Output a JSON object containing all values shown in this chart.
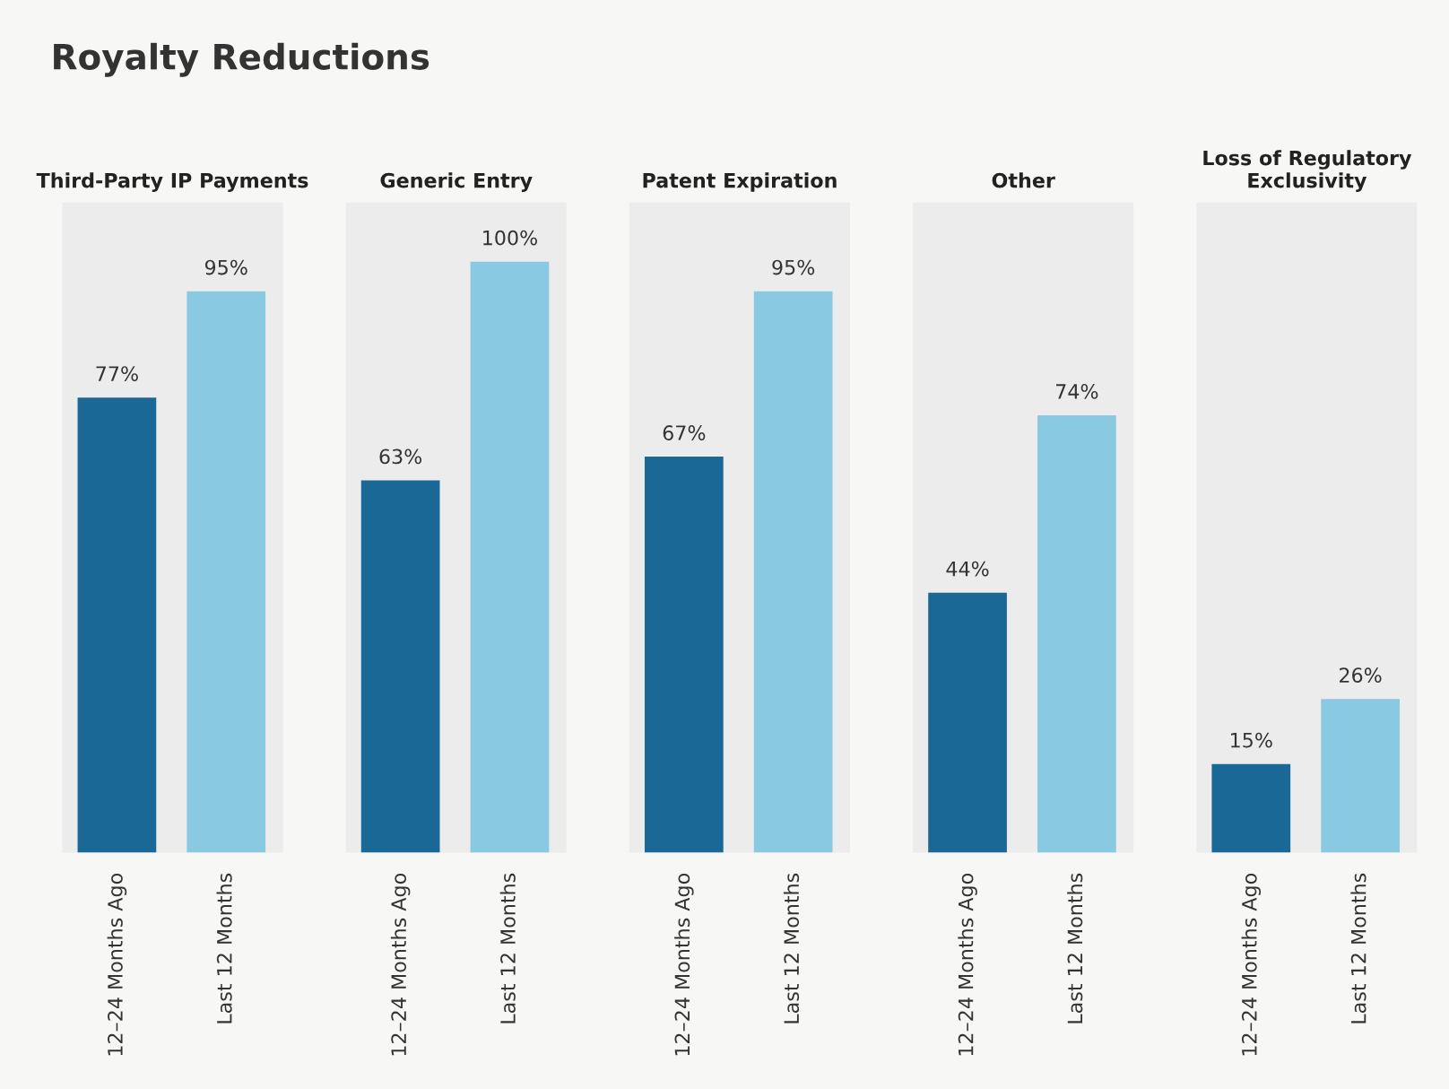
{
  "chart_data": [
    {
      "type": "bar",
      "title": "Third-Party IP Payments",
      "annotations": [
        "Royalty Reductions"
      ],
      "categories": [
        "12–24 Months Ago",
        "Last 12 Months"
      ],
      "values": [
        77,
        95
      ],
      "colors": [
        "#1a6896",
        "#89cae2"
      ],
      "value_labels": [
        "77%",
        "95%"
      ],
      "grid": false,
      "legend": false
    },
    {
      "type": "bar",
      "title": "Generic Entry",
      "categories": [
        "12–24 Months Ago",
        "Last 12 Months"
      ],
      "values": [
        63,
        100
      ],
      "colors": [
        "#1a6896",
        "#89cae2"
      ],
      "value_labels": [
        "63%",
        "100%"
      ],
      "grid": false,
      "legend": false
    },
    {
      "type": "bar",
      "title": "Patent Expiration",
      "categories": [
        "12–24 Months Ago",
        "Last 12 Months"
      ],
      "values": [
        67,
        95
      ],
      "colors": [
        "#1a6896",
        "#89cae2"
      ],
      "value_labels": [
        "67%",
        "95%"
      ],
      "grid": false,
      "legend": false
    },
    {
      "type": "bar",
      "title": "Other",
      "categories": [
        "12–24 Months Ago",
        "Last 12 Months"
      ],
      "values": [
        44,
        74
      ],
      "colors": [
        "#1a6896",
        "#89cae2"
      ],
      "value_labels": [
        "44%",
        "74%"
      ],
      "grid": false,
      "legend": false
    },
    {
      "type": "bar",
      "title": "Loss of Regulatory\nExclusivity",
      "categories": [
        "12–24 Months Ago",
        "Last 12 Months"
      ],
      "values": [
        15,
        26
      ],
      "colors": [
        "#1a6896",
        "#89cae2"
      ],
      "value_labels": [
        "15%",
        "26%"
      ],
      "grid": false,
      "legend": false
    }
  ]
}
